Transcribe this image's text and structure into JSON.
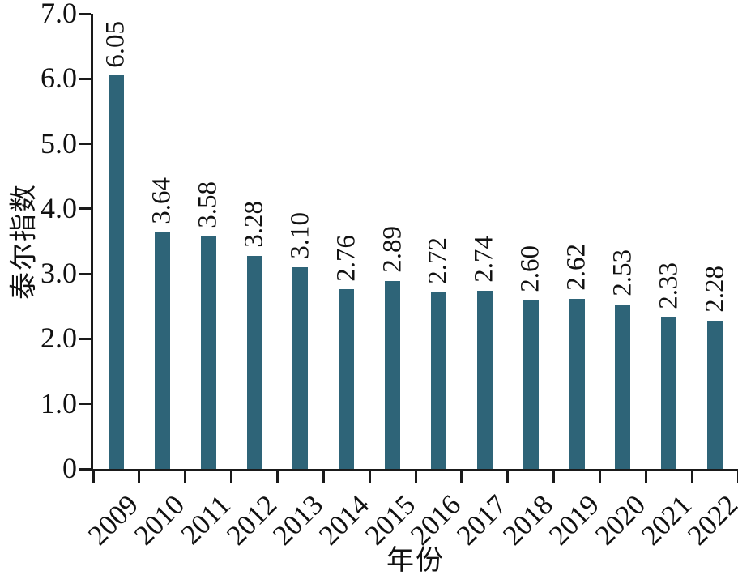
{
  "chart_data": {
    "type": "bar",
    "title": "",
    "xlabel": "年份",
    "ylabel": "泰尔指数",
    "categories": [
      "2009",
      "2010",
      "2011",
      "2012",
      "2013",
      "2014",
      "2015",
      "2016",
      "2017",
      "2018",
      "2019",
      "2020",
      "2021",
      "2022"
    ],
    "values": [
      6.05,
      3.64,
      3.58,
      3.28,
      3.1,
      2.76,
      2.89,
      2.72,
      2.74,
      2.6,
      2.62,
      2.53,
      2.33,
      2.28
    ],
    "value_labels": [
      "6.05",
      "3.64",
      "3.58",
      "3.28",
      "3.10",
      "2.76",
      "2.89",
      "2.72",
      "2.74",
      "2.60",
      "2.62",
      "2.53",
      "2.33",
      "2.28"
    ],
    "ylim": [
      0,
      7
    ],
    "yticks": [
      {
        "value": 0,
        "label": "0"
      },
      {
        "value": 1,
        "label": "1.0"
      },
      {
        "value": 2,
        "label": "2.0"
      },
      {
        "value": 3,
        "label": "3.0"
      },
      {
        "value": 4,
        "label": "4.0"
      },
      {
        "value": 5,
        "label": "5.0"
      },
      {
        "value": 6,
        "label": "6.0"
      },
      {
        "value": 7,
        "label": "7.0"
      }
    ],
    "grid": false,
    "legend": "none",
    "bar_color": "#2e6478",
    "axis_color": "#1a1a1a",
    "text_color": "#111111"
  }
}
